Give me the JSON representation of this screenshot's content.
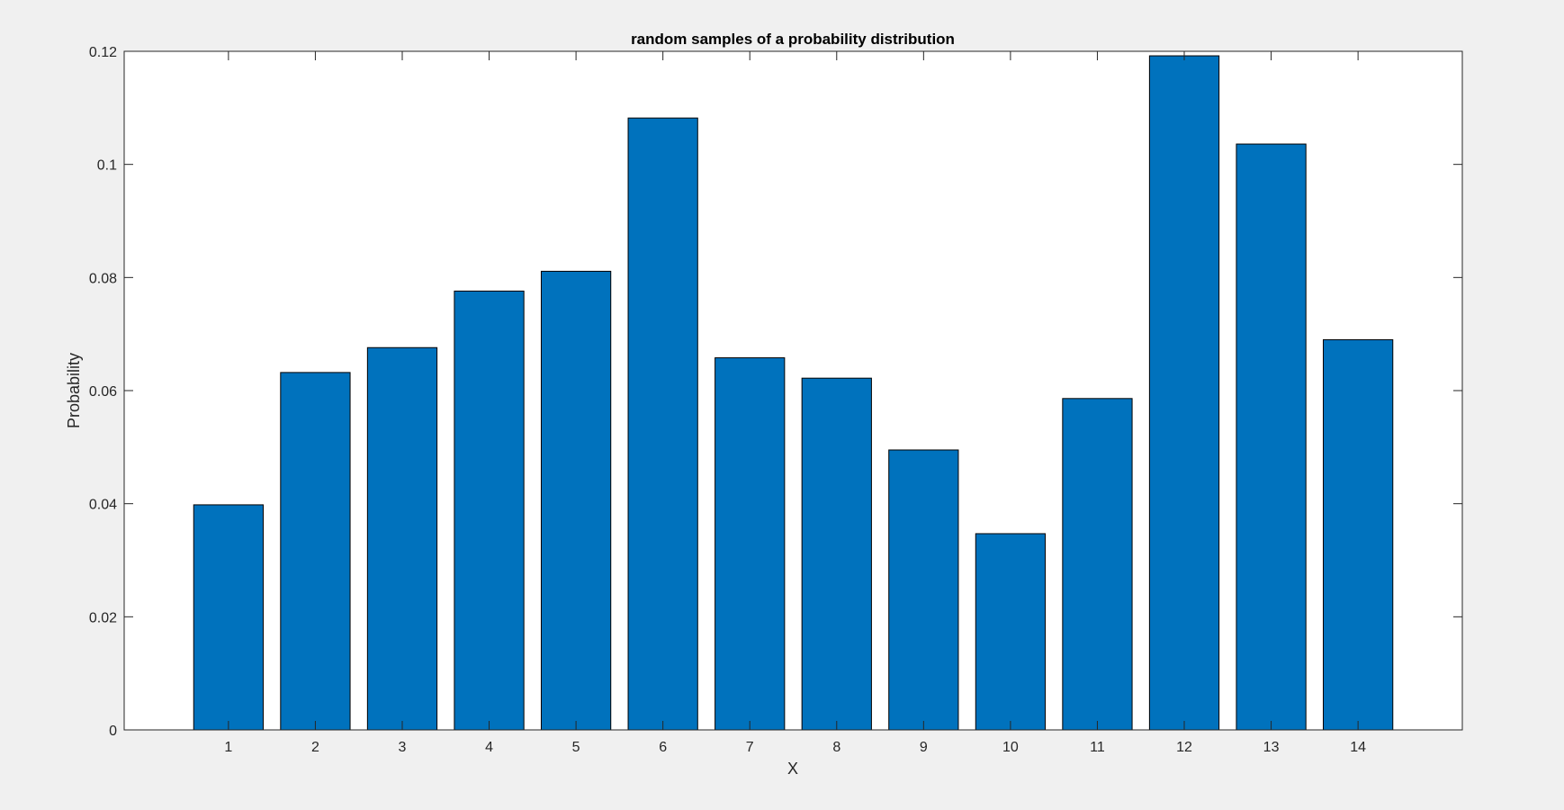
{
  "chart_data": {
    "type": "bar",
    "title": "random samples of a probability distribution",
    "xlabel": "X",
    "ylabel": "Probability",
    "categories": [
      "1",
      "2",
      "3",
      "4",
      "5",
      "6",
      "7",
      "8",
      "9",
      "10",
      "11",
      "12",
      "13",
      "14"
    ],
    "values": [
      0.0398,
      0.0632,
      0.0676,
      0.0776,
      0.0811,
      0.1082,
      0.0658,
      0.0622,
      0.0495,
      0.0347,
      0.0586,
      0.1192,
      0.1036,
      0.069
    ],
    "ylim": [
      0,
      0.12
    ],
    "xlim": [
      -0.2,
      15.2
    ],
    "yticks": [
      "0",
      "0.02",
      "0.04",
      "0.06",
      "0.08",
      "0.1",
      "0.12"
    ],
    "grid": false,
    "legend": "none",
    "colors": {
      "bar_fill": "#0072bd",
      "bar_edge": "#000000",
      "axes_background": "#ffffff",
      "figure_background": "#f0f0f0",
      "axis_color": "#262626"
    }
  }
}
